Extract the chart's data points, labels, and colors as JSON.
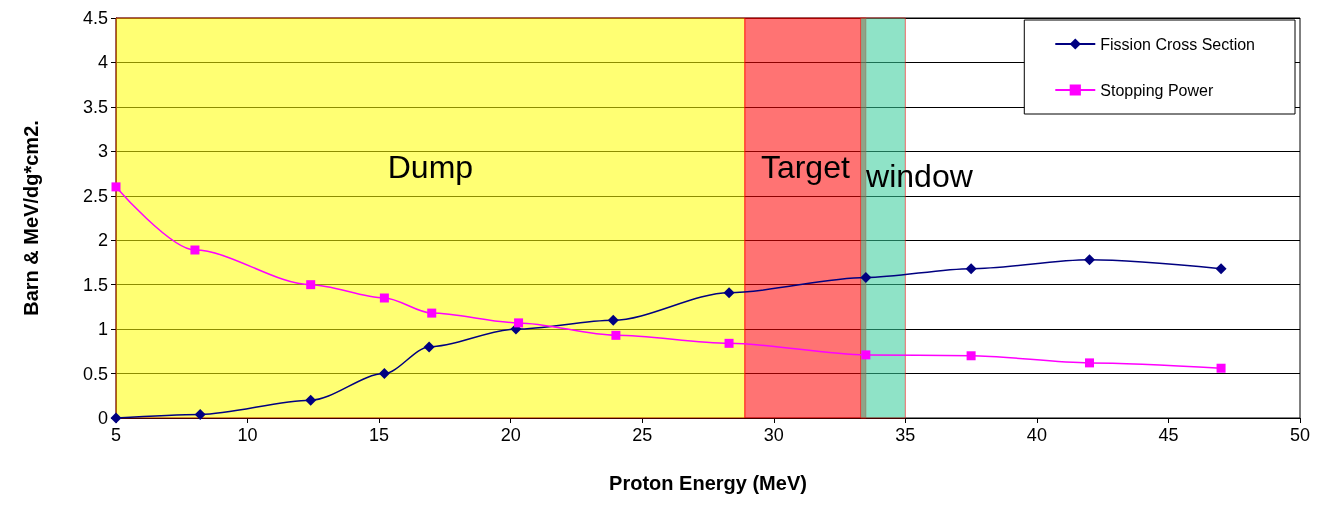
{
  "chart_data": {
    "type": "line",
    "xlabel": "Proton Energy (MeV)",
    "ylabel": "Barn & MeV/dg*cm2.",
    "xlim": [
      5,
      50
    ],
    "xticks": [
      5,
      10,
      15,
      20,
      25,
      30,
      35,
      40,
      45,
      50
    ],
    "ylim": [
      0,
      4.5
    ],
    "yticks": [
      0,
      0.5,
      1,
      1.5,
      2,
      2.5,
      3,
      3.5,
      4,
      4.5
    ],
    "grid": "y",
    "legend": "top right",
    "series": [
      {
        "name": "Fission Cross Section",
        "color": "#000080",
        "marker": "diamond",
        "x": [
          5,
          8.2,
          12.4,
          15.2,
          16.9,
          20.2,
          23.9,
          28.3,
          33.5,
          37.5,
          42,
          47
        ],
        "values": [
          0,
          0.04,
          0.2,
          0.5,
          0.8,
          1.0,
          1.1,
          1.41,
          1.58,
          1.68,
          1.78,
          1.68
        ]
      },
      {
        "name": "Stopping Power",
        "color": "#ff00ff",
        "marker": "square",
        "x": [
          5,
          8,
          12.4,
          15.2,
          17,
          20.3,
          24,
          28.3,
          33.5,
          37.5,
          42,
          47
        ],
        "values": [
          2.6,
          1.89,
          1.5,
          1.35,
          1.18,
          1.07,
          0.93,
          0.84,
          0.71,
          0.7,
          0.62,
          0.56
        ]
      }
    ],
    "bands": [
      {
        "axis": "x",
        "from": 5,
        "to": 28.9,
        "label": "Dump",
        "color": "#ffff00"
      },
      {
        "axis": "x",
        "from": 28.9,
        "to": 33.5,
        "label": "Target",
        "color": "#ff0000"
      },
      {
        "axis": "x",
        "from": 33.3,
        "to": 35,
        "label": "window",
        "color": "#33cc99"
      }
    ]
  }
}
